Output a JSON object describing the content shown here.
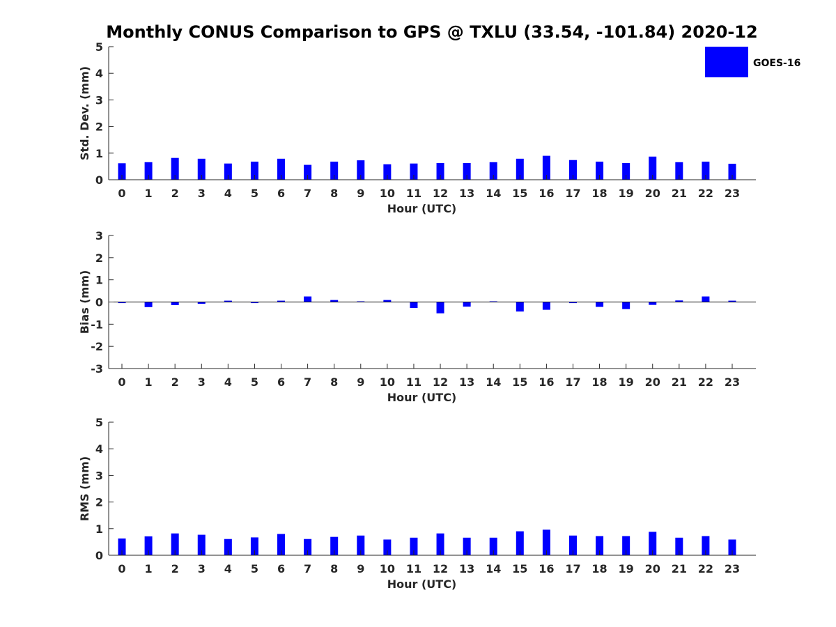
{
  "chart_data": [
    {
      "type": "bar",
      "title": "Monthly CONUS Comparison to GPS @ TXLU (33.54, -101.84) 2020-12",
      "xlabel": "Hour (UTC)",
      "ylabel": "Std. Dev. (mm)",
      "ylim": [
        0,
        5
      ],
      "yticks": [
        0,
        1,
        2,
        3,
        4,
        5
      ],
      "categories": [
        "0",
        "1",
        "2",
        "3",
        "4",
        "5",
        "6",
        "7",
        "8",
        "9",
        "10",
        "11",
        "12",
        "13",
        "14",
        "15",
        "16",
        "17",
        "18",
        "19",
        "20",
        "21",
        "22",
        "23"
      ],
      "series": [
        {
          "name": "GOES-16",
          "color": "#0000ff",
          "values": [
            0.62,
            0.66,
            0.82,
            0.79,
            0.61,
            0.68,
            0.79,
            0.56,
            0.68,
            0.73,
            0.58,
            0.61,
            0.63,
            0.63,
            0.66,
            0.79,
            0.9,
            0.74,
            0.68,
            0.63,
            0.87,
            0.66,
            0.68,
            0.6
          ]
        }
      ],
      "legend": "top-right",
      "grid": false
    },
    {
      "type": "bar",
      "title": "",
      "xlabel": "Hour (UTC)",
      "ylabel": "Bias (mm)",
      "ylim": [
        -3,
        3
      ],
      "yticks": [
        -3,
        -2,
        -1,
        0,
        1,
        2,
        3
      ],
      "categories": [
        "0",
        "1",
        "2",
        "3",
        "4",
        "5",
        "6",
        "7",
        "8",
        "9",
        "10",
        "11",
        "12",
        "13",
        "14",
        "15",
        "16",
        "17",
        "18",
        "19",
        "20",
        "21",
        "22",
        "23"
      ],
      "series": [
        {
          "name": "GOES-16",
          "color": "#0000ff",
          "values": [
            -0.05,
            -0.23,
            -0.14,
            -0.08,
            0.06,
            -0.05,
            0.06,
            0.25,
            0.09,
            0.03,
            0.09,
            -0.27,
            -0.51,
            -0.21,
            0.03,
            -0.43,
            -0.35,
            -0.05,
            -0.22,
            -0.32,
            -0.13,
            0.07,
            0.25,
            0.06
          ]
        }
      ],
      "grid": false
    },
    {
      "type": "bar",
      "title": "",
      "xlabel": "Hour (UTC)",
      "ylabel": "RMS (mm)",
      "ylim": [
        0,
        5
      ],
      "yticks": [
        0,
        1,
        2,
        3,
        4,
        5
      ],
      "categories": [
        "0",
        "1",
        "2",
        "3",
        "4",
        "5",
        "6",
        "7",
        "8",
        "9",
        "10",
        "11",
        "12",
        "13",
        "14",
        "15",
        "16",
        "17",
        "18",
        "19",
        "20",
        "21",
        "22",
        "23"
      ],
      "series": [
        {
          "name": "GOES-16",
          "color": "#0000ff",
          "values": [
            0.63,
            0.71,
            0.82,
            0.77,
            0.61,
            0.67,
            0.8,
            0.61,
            0.69,
            0.74,
            0.59,
            0.66,
            0.82,
            0.66,
            0.66,
            0.9,
            0.96,
            0.74,
            0.72,
            0.72,
            0.88,
            0.66,
            0.72,
            0.59
          ]
        }
      ],
      "grid": false
    }
  ]
}
